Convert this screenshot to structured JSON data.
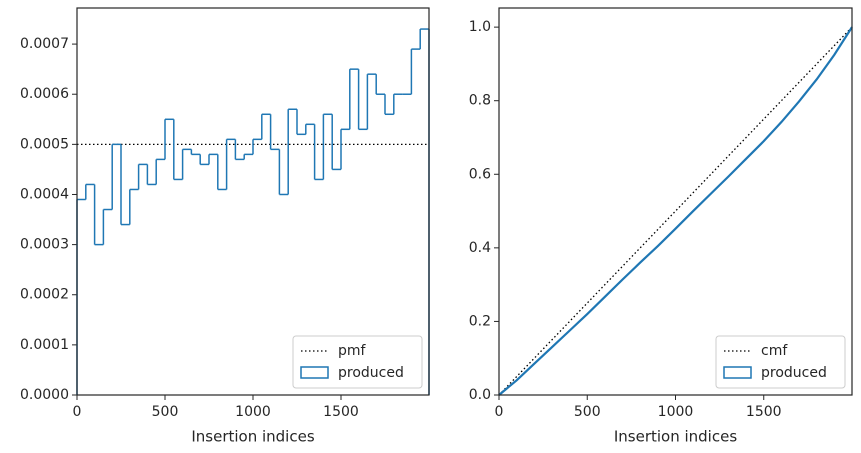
{
  "chart_data": [
    {
      "type": "histogram",
      "xlabel": "Insertion indices",
      "bins": [
        0,
        50,
        100,
        150,
        200,
        250,
        300,
        350,
        400,
        450,
        500,
        550,
        600,
        650,
        700,
        750,
        800,
        850,
        900,
        950,
        1000,
        1050,
        1100,
        1150,
        1200,
        1250,
        1300,
        1350,
        1400,
        1450,
        1500,
        1550,
        1600,
        1650,
        1700,
        1750,
        1800,
        1850,
        1900,
        1950,
        2000
      ],
      "series": [
        {
          "name": "pmf",
          "color": "#000000",
          "linestyle": "dotted",
          "value": 0.0005
        },
        {
          "name": "produced",
          "color": "#1f77b4",
          "histtype": "step",
          "values": [
            0.00039,
            0.00042,
            0.0003,
            0.00037,
            0.0005,
            0.00034,
            0.00041,
            0.00046,
            0.00042,
            0.00047,
            0.00055,
            0.00043,
            0.00049,
            0.00048,
            0.00046,
            0.00048,
            0.00041,
            0.00051,
            0.00047,
            0.00048,
            0.00051,
            0.00056,
            0.00049,
            0.0004,
            0.00057,
            0.00052,
            0.00054,
            0.00043,
            0.00056,
            0.00045,
            0.00053,
            0.00065,
            0.00053,
            0.00064,
            0.0006,
            0.00056,
            0.0006,
            0.0006,
            0.00069,
            0.00073
          ]
        }
      ],
      "xlim": [
        0,
        2000
      ],
      "xticks": [
        0,
        500,
        1000,
        1500
      ],
      "ylim": [
        0,
        0.000772
      ],
      "yticks": [
        {
          "value": 0,
          "label": "0.0000"
        },
        {
          "value": 0.0001,
          "label": "0.0001"
        },
        {
          "value": 0.0002,
          "label": "0.0002"
        },
        {
          "value": 0.0003,
          "label": "0.0003"
        },
        {
          "value": 0.0004,
          "label": "0.0004"
        },
        {
          "value": 0.0005,
          "label": "0.0005"
        },
        {
          "value": 0.0006,
          "label": "0.0006"
        },
        {
          "value": 0.0007,
          "label": "0.0007"
        }
      ],
      "legend": "lower right"
    },
    {
      "type": "line",
      "xlabel": "Insertion indices",
      "series": [
        {
          "name": "cmf",
          "color": "#000000",
          "linestyle": "dotted",
          "x": [
            0,
            2000
          ],
          "values": [
            0,
            1
          ]
        },
        {
          "name": "produced",
          "color": "#1f77b4",
          "histtype": "step",
          "x": [
            0,
            100,
            200,
            300,
            400,
            500,
            600,
            700,
            800,
            900,
            1000,
            1100,
            1200,
            1300,
            1400,
            1500,
            1600,
            1700,
            1800,
            1900,
            2000
          ],
          "values": [
            0,
            0.04,
            0.085,
            0.13,
            0.175,
            0.22,
            0.267,
            0.314,
            0.36,
            0.405,
            0.452,
            0.5,
            0.547,
            0.594,
            0.642,
            0.69,
            0.742,
            0.798,
            0.858,
            0.925,
            1.0
          ]
        }
      ],
      "xlim": [
        0,
        2000
      ],
      "xticks": [
        0,
        500,
        1000,
        1500
      ],
      "ylim": [
        0,
        1.052
      ],
      "yticks": [
        {
          "value": 0,
          "label": "0.0"
        },
        0.2,
        0.4,
        0.6,
        0.8,
        {
          "value": 1,
          "label": "1.0"
        }
      ],
      "legend": "lower right"
    }
  ]
}
